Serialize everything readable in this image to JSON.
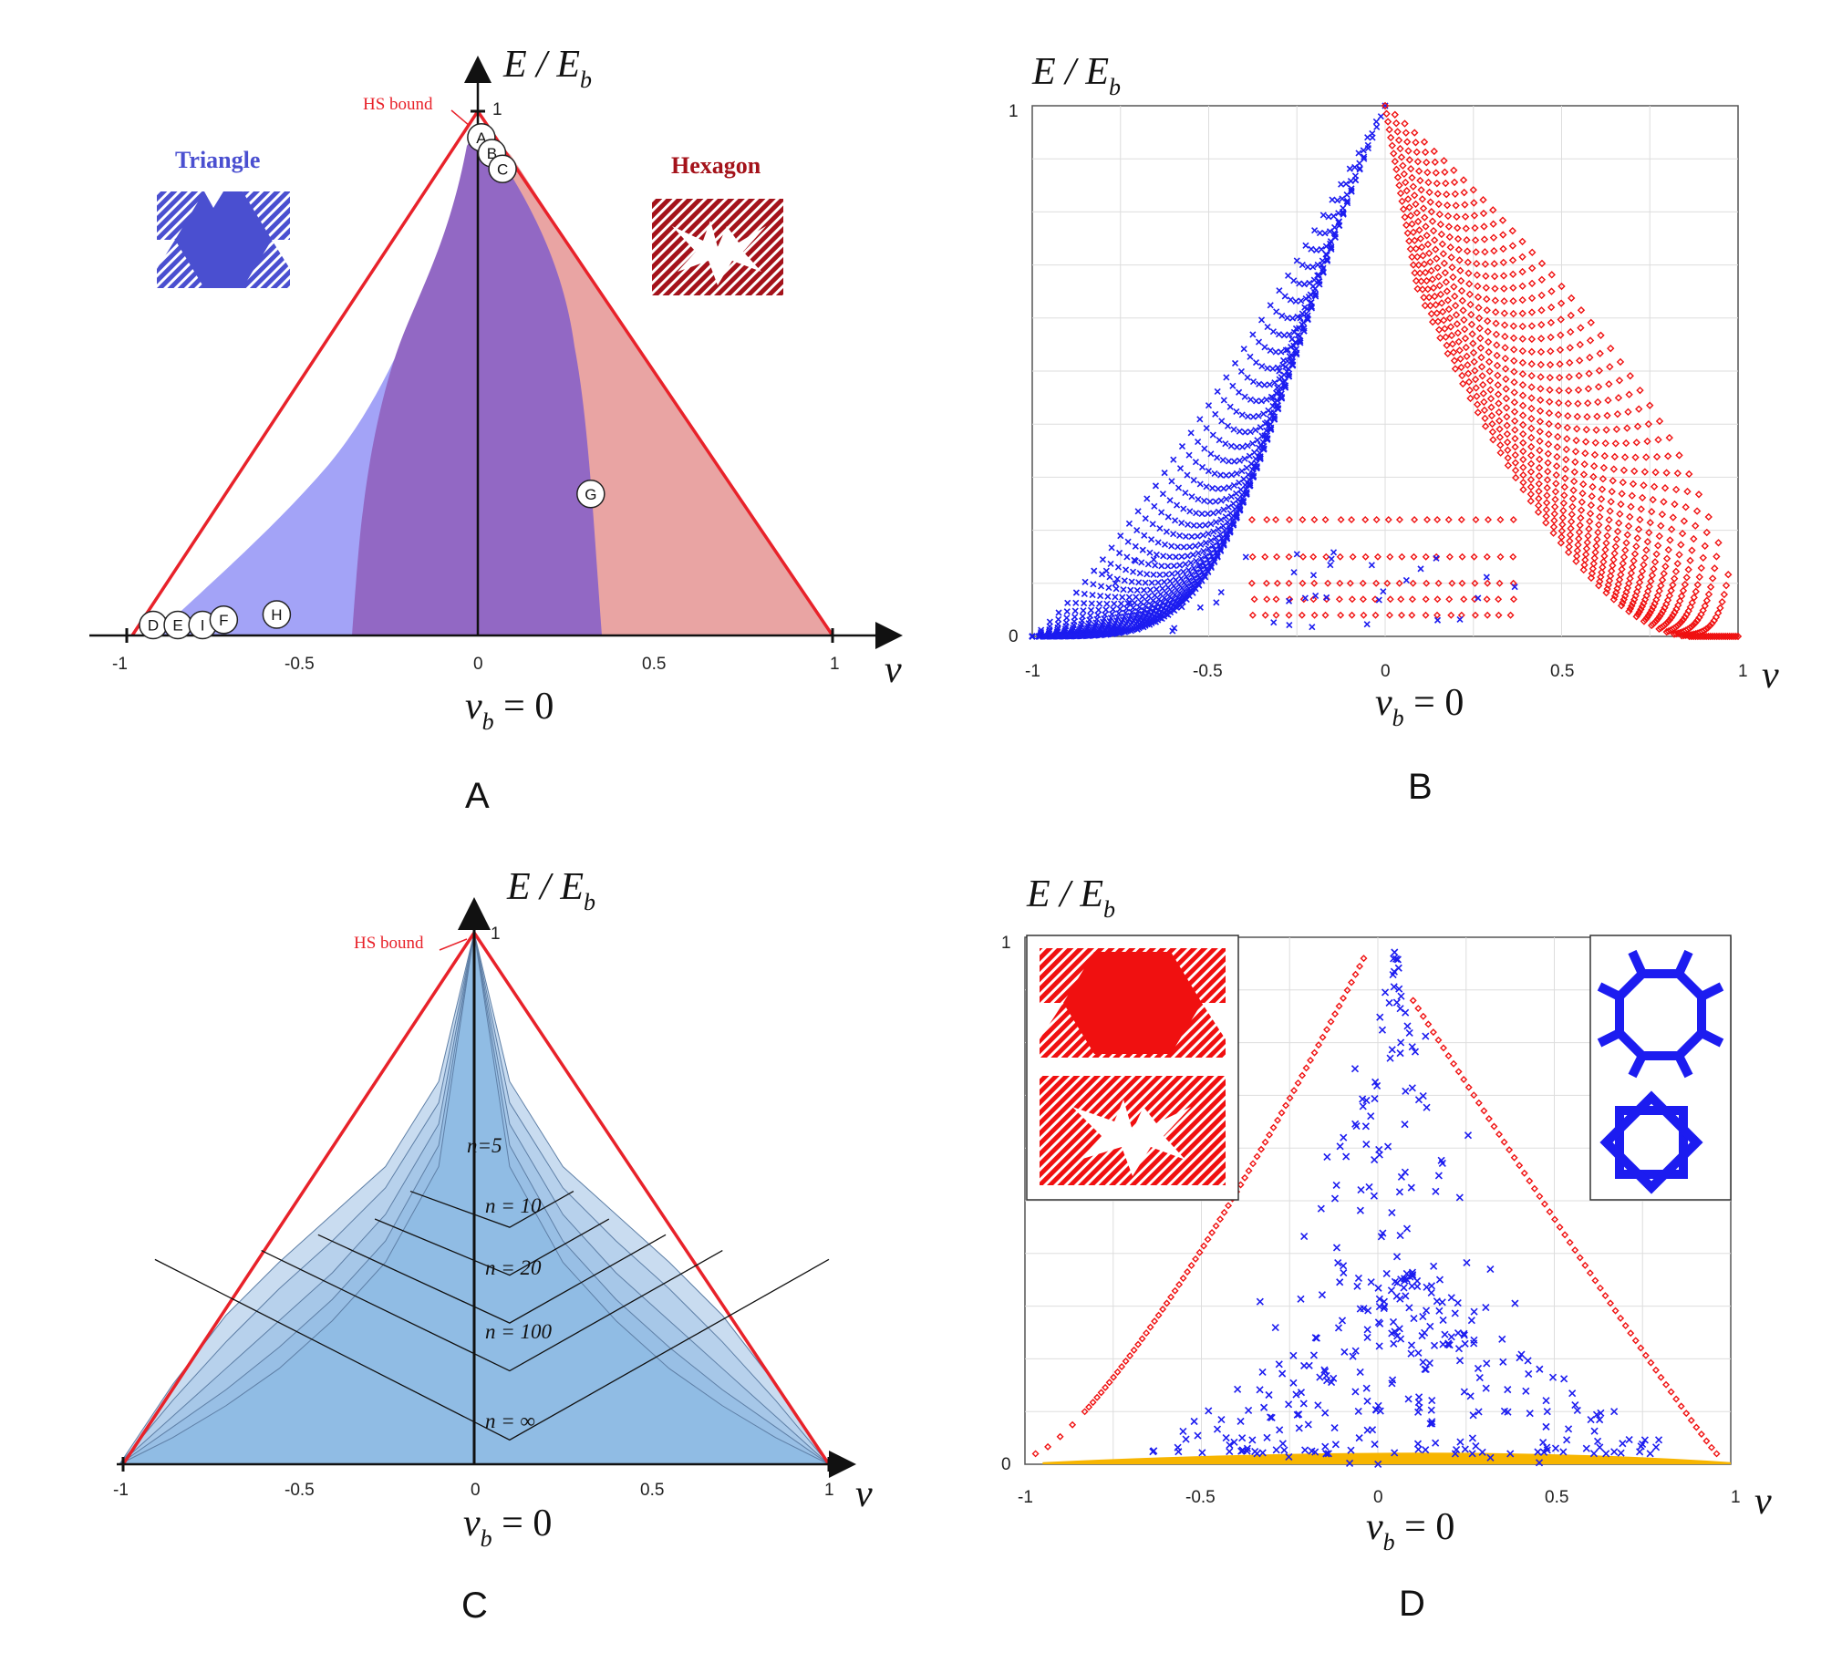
{
  "panels": {
    "A": {
      "letter": "A",
      "ylabel": "E / E",
      "ylabel_sub": "b",
      "xlabel": "ν",
      "caption": "ν",
      "caption_sub": "b",
      "caption_eq": " = 0",
      "hs_label": "HS bound",
      "y_tick": "1",
      "x_ticks": [
        "-1",
        "-0.5",
        "0",
        "0.5",
        "1"
      ],
      "title_left": "Triangle",
      "title_right": "Hexagon",
      "points": [
        {
          "label": "A",
          "nu": 0.01,
          "e": 0.95
        },
        {
          "label": "B",
          "nu": 0.04,
          "e": 0.92
        },
        {
          "label": "C",
          "nu": 0.07,
          "e": 0.89
        },
        {
          "label": "D",
          "nu": -0.92,
          "e": 0.02
        },
        {
          "label": "E",
          "nu": -0.85,
          "e": 0.02
        },
        {
          "label": "I",
          "nu": -0.78,
          "e": 0.02
        },
        {
          "label": "F",
          "nu": -0.72,
          "e": 0.03
        },
        {
          "label": "H",
          "nu": -0.57,
          "e": 0.04
        },
        {
          "label": "G",
          "nu": 0.32,
          "e": 0.27
        }
      ]
    },
    "B": {
      "letter": "B",
      "ylabel": "E / E",
      "ylabel_sub": "b",
      "xlabel": "ν",
      "caption": "ν",
      "caption_sub": "b",
      "caption_eq": " = 0",
      "y_ticks": [
        "0",
        "1"
      ],
      "x_ticks": [
        "-1",
        "-0.5",
        "0",
        "0.5",
        "1"
      ]
    },
    "C": {
      "letter": "C",
      "ylabel": "E / E",
      "ylabel_sub": "b",
      "xlabel": "ν",
      "caption": "ν",
      "caption_sub": "b",
      "caption_eq": " = 0",
      "hs_label": "HS bound",
      "y_tick": "1",
      "x_ticks": [
        "-1",
        "-0.5",
        "0",
        "0.5",
        "1"
      ],
      "n_labels": [
        "n=5",
        "n = 10",
        "n = 20",
        "n = 100",
        "n = ∞"
      ]
    },
    "D": {
      "letter": "D",
      "ylabel": "E / E",
      "ylabel_sub": "b",
      "xlabel": "ν",
      "caption": "ν",
      "caption_sub": "b",
      "caption_eq": " = 0",
      "y_ticks": [
        "0",
        "1"
      ],
      "x_ticks": [
        "-1",
        "-0.5",
        "0",
        "0.5",
        "1"
      ]
    }
  },
  "colors": {
    "hs_bound": "#e8222a",
    "triangle": "#a3a3f7",
    "overlap": "#9268c4",
    "hexagon": "#e9a4a3",
    "blue_marker": "#1c1cf0",
    "red_marker": "#f01010",
    "bound_fill": "#90bce4",
    "orange": "#f7b500"
  },
  "chart_data": [
    {
      "panel": "A",
      "type": "area",
      "xlabel": "ν",
      "ylabel": "E / E_b",
      "xlim": [
        -1,
        1
      ],
      "ylim": [
        0,
        1
      ],
      "series": [
        {
          "name": "Triangle",
          "x": [
            -0.95,
            -0.75,
            -0.55,
            -0.42,
            -0.3,
            -0.18,
            -0.08,
            -0.02,
            0,
            0.06,
            0.1,
            0.14,
            0.16,
            0.16,
            0.15,
            0.12,
            0.08,
            0.04,
            0
          ],
          "y": [
            0,
            0.09,
            0.2,
            0.3,
            0.4,
            0.52,
            0.68,
            0.84,
            0.98,
            0.95,
            0.82,
            0.68,
            0.5,
            0.34,
            0.2,
            0.1,
            0.04,
            0.01,
            0
          ]
        },
        {
          "name": "Hexagon",
          "x": [
            -0.34,
            -0.3,
            -0.26,
            -0.2,
            -0.12,
            -0.05,
            0,
            0.05,
            0.1,
            0.2,
            0.32,
            0.45,
            0.6,
            0.8,
            1.0
          ],
          "y": [
            0,
            0.2,
            0.4,
            0.55,
            0.68,
            0.82,
            0.98,
            0.93,
            0.88,
            0.78,
            0.64,
            0.5,
            0.34,
            0.15,
            0
          ]
        }
      ]
    },
    {
      "panel": "B",
      "type": "scatter",
      "xlabel": "ν",
      "ylabel": "E / E_b",
      "xlim": [
        -1,
        1
      ],
      "ylim": [
        0,
        1
      ],
      "grid": true
    },
    {
      "panel": "C",
      "type": "area",
      "xlabel": "ν",
      "ylabel": "E / E_b",
      "xlim": [
        -1,
        1
      ],
      "ylim": [
        0,
        1
      ],
      "series": [
        {
          "name": "n=5",
          "x": [
            -1,
            -0.85,
            -0.7,
            -0.55,
            -0.4,
            -0.25,
            -0.1,
            0,
            0.1,
            0.25,
            0.4,
            0.55,
            0.7,
            0.85,
            1
          ],
          "y": [
            0,
            0.15,
            0.28,
            0.38,
            0.47,
            0.56,
            0.72,
            1.0,
            0.72,
            0.56,
            0.47,
            0.38,
            0.28,
            0.15,
            0
          ]
        },
        {
          "name": "n = 10",
          "x": [
            -1,
            -0.85,
            -0.7,
            -0.55,
            -0.4,
            -0.25,
            -0.1,
            0,
            0.1,
            0.25,
            0.4,
            0.55,
            0.7,
            0.85,
            1
          ],
          "y": [
            0,
            0.12,
            0.23,
            0.33,
            0.42,
            0.52,
            0.68,
            1.0,
            0.68,
            0.52,
            0.42,
            0.33,
            0.23,
            0.12,
            0
          ]
        },
        {
          "name": "n = 20",
          "x": [
            -1,
            -0.85,
            -0.7,
            -0.55,
            -0.4,
            -0.25,
            -0.1,
            0,
            0.1,
            0.25,
            0.4,
            0.55,
            0.7,
            0.85,
            1
          ],
          "y": [
            0,
            0.09,
            0.18,
            0.27,
            0.36,
            0.47,
            0.64,
            1.0,
            0.64,
            0.47,
            0.36,
            0.27,
            0.18,
            0.09,
            0
          ]
        },
        {
          "name": "n = 100",
          "x": [
            -1,
            -0.85,
            -0.7,
            -0.55,
            -0.4,
            -0.25,
            -0.1,
            0,
            0.1,
            0.25,
            0.4,
            0.55,
            0.7,
            0.85,
            1
          ],
          "y": [
            0,
            0.07,
            0.14,
            0.22,
            0.31,
            0.42,
            0.6,
            1.0,
            0.6,
            0.42,
            0.31,
            0.22,
            0.14,
            0.07,
            0
          ]
        },
        {
          "name": "n = ∞",
          "x": [
            -1,
            -0.85,
            -0.7,
            -0.55,
            -0.4,
            -0.25,
            -0.1,
            0,
            0.1,
            0.25,
            0.4,
            0.55,
            0.7,
            0.85,
            1
          ],
          "y": [
            0,
            0.05,
            0.11,
            0.18,
            0.27,
            0.38,
            0.56,
            1.0,
            0.56,
            0.38,
            0.27,
            0.18,
            0.11,
            0.05,
            0
          ]
        }
      ]
    },
    {
      "panel": "D",
      "type": "scatter",
      "xlabel": "ν",
      "ylabel": "E / E_b",
      "xlim": [
        -1,
        1
      ],
      "ylim": [
        0,
        1
      ],
      "grid": true
    }
  ]
}
